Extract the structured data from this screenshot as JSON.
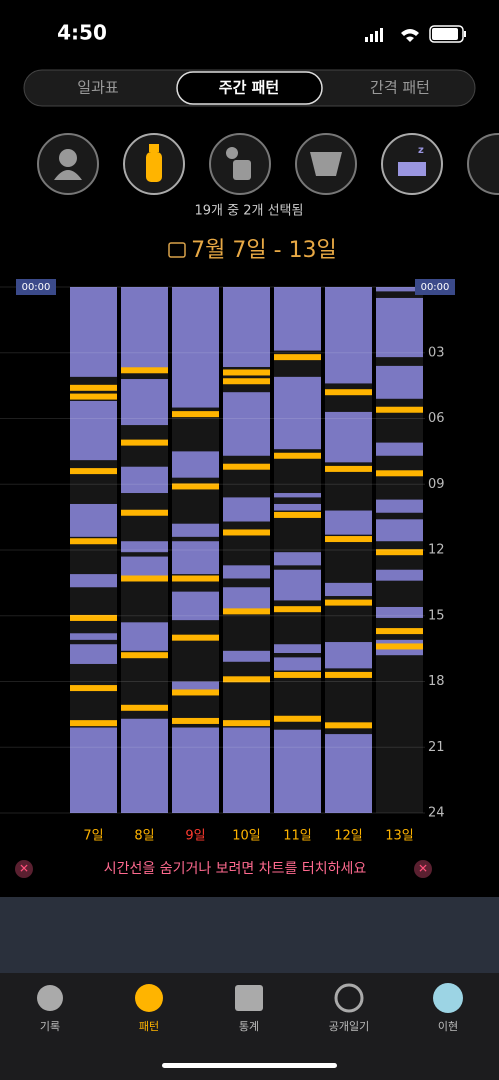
{
  "status_bar": {
    "time": "4:50"
  },
  "tabs": [
    "일과표",
    "주간 패턴",
    "간격 패턴"
  ],
  "selection_caption": "19개 중 2개 선택됨",
  "date_range": "7월 7일 - 13일",
  "chart_data": {
    "type": "timeline",
    "ylim": [
      0,
      24
    ],
    "yticks": [
      {
        "value": 0,
        "label": "00:00"
      },
      {
        "value": 3,
        "label": "03"
      },
      {
        "value": 6,
        "label": "06"
      },
      {
        "value": 9,
        "label": "09"
      },
      12,
      15,
      18,
      21,
      24
    ],
    "sleep_color": "#7b78c2",
    "feed_color": "#ffb400",
    "days": [
      {
        "label": "7일",
        "color": "#ffb400",
        "sleep": [
          [
            0,
            4.1
          ],
          [
            5.2,
            7.9
          ],
          [
            9.9,
            11.4
          ],
          [
            13.1,
            13.7
          ],
          [
            15.8,
            16.1
          ],
          [
            16.3,
            17.2
          ],
          [
            20.1,
            24
          ]
        ],
        "feeds": [
          4.6,
          5.0,
          8.4,
          11.6,
          15.1,
          18.3,
          19.9
        ]
      },
      {
        "label": "8일",
        "color": "#ffb400",
        "sleep": [
          [
            0,
            3.7
          ],
          [
            4.2,
            6.3
          ],
          [
            8.2,
            9.4
          ],
          [
            11.6,
            12.1
          ],
          [
            12.3,
            13.2
          ],
          [
            15.3,
            16.6
          ],
          [
            19.7,
            24
          ]
        ],
        "feeds": [
          3.8,
          7.1,
          10.3,
          13.3,
          16.8,
          19.2
        ]
      },
      {
        "label": "9일",
        "color": "#ff3b30",
        "sleep": [
          [
            0,
            5.5
          ],
          [
            7.5,
            8.7
          ],
          [
            10.8,
            11.4
          ],
          [
            11.6,
            13.1
          ],
          [
            13.9,
            15.2
          ],
          [
            18.0,
            18.4
          ],
          [
            20.1,
            24
          ]
        ],
        "feeds": [
          5.8,
          9.1,
          13.3,
          16.0,
          18.5,
          19.8
        ]
      },
      {
        "label": "10일",
        "color": "#ffb400",
        "sleep": [
          [
            0,
            3.65
          ],
          [
            4.8,
            7.7
          ],
          [
            9.6,
            10.7
          ],
          [
            12.7,
            13.3
          ],
          [
            13.7,
            14.7
          ],
          [
            16.6,
            17.1
          ],
          [
            20.1,
            24
          ]
        ],
        "feeds": [
          3.9,
          4.3,
          8.2,
          11.2,
          14.8,
          17.9,
          19.9
        ]
      },
      {
        "label": "11일",
        "color": "#ffb400",
        "sleep": [
          [
            0,
            2.9
          ],
          [
            4.1,
            7.4
          ],
          [
            9.4,
            9.6
          ],
          [
            9.9,
            10.2
          ],
          [
            12.1,
            12.7
          ],
          [
            12.9,
            14.3
          ],
          [
            16.3,
            16.7
          ],
          [
            16.9,
            17.5
          ],
          [
            20.2,
            24
          ]
        ],
        "feeds": [
          3.2,
          7.7,
          10.4,
          14.7,
          17.7,
          19.7
        ]
      },
      {
        "label": "12일",
        "color": "#ffb400",
        "sleep": [
          [
            0,
            4.4
          ],
          [
            5.7,
            8.0
          ],
          [
            10.2,
            11.3
          ],
          [
            13.5,
            14.1
          ],
          [
            16.2,
            17.4
          ],
          [
            20.4,
            24
          ]
        ],
        "feeds": [
          4.8,
          8.3,
          11.5,
          14.4,
          17.7,
          20.0
        ]
      },
      {
        "label": "13일",
        "color": "#ffb400",
        "sleep": [
          [
            0,
            0.2
          ],
          [
            0.5,
            3.2
          ],
          [
            3.6,
            5.1
          ],
          [
            7.1,
            7.7
          ],
          [
            9.7,
            10.3
          ],
          [
            10.6,
            11.6
          ],
          [
            12.9,
            13.4
          ],
          [
            14.6,
            15.1
          ],
          [
            16.1,
            16.8
          ]
        ],
        "feeds": [
          5.6,
          8.5,
          12.1,
          15.7,
          16.4
        ]
      }
    ]
  },
  "hint": "시간선을 숨기거나 보려면 차트를 터치하세요",
  "nav": [
    "기록",
    "패턴",
    "통계",
    "공개일기",
    "이현"
  ]
}
